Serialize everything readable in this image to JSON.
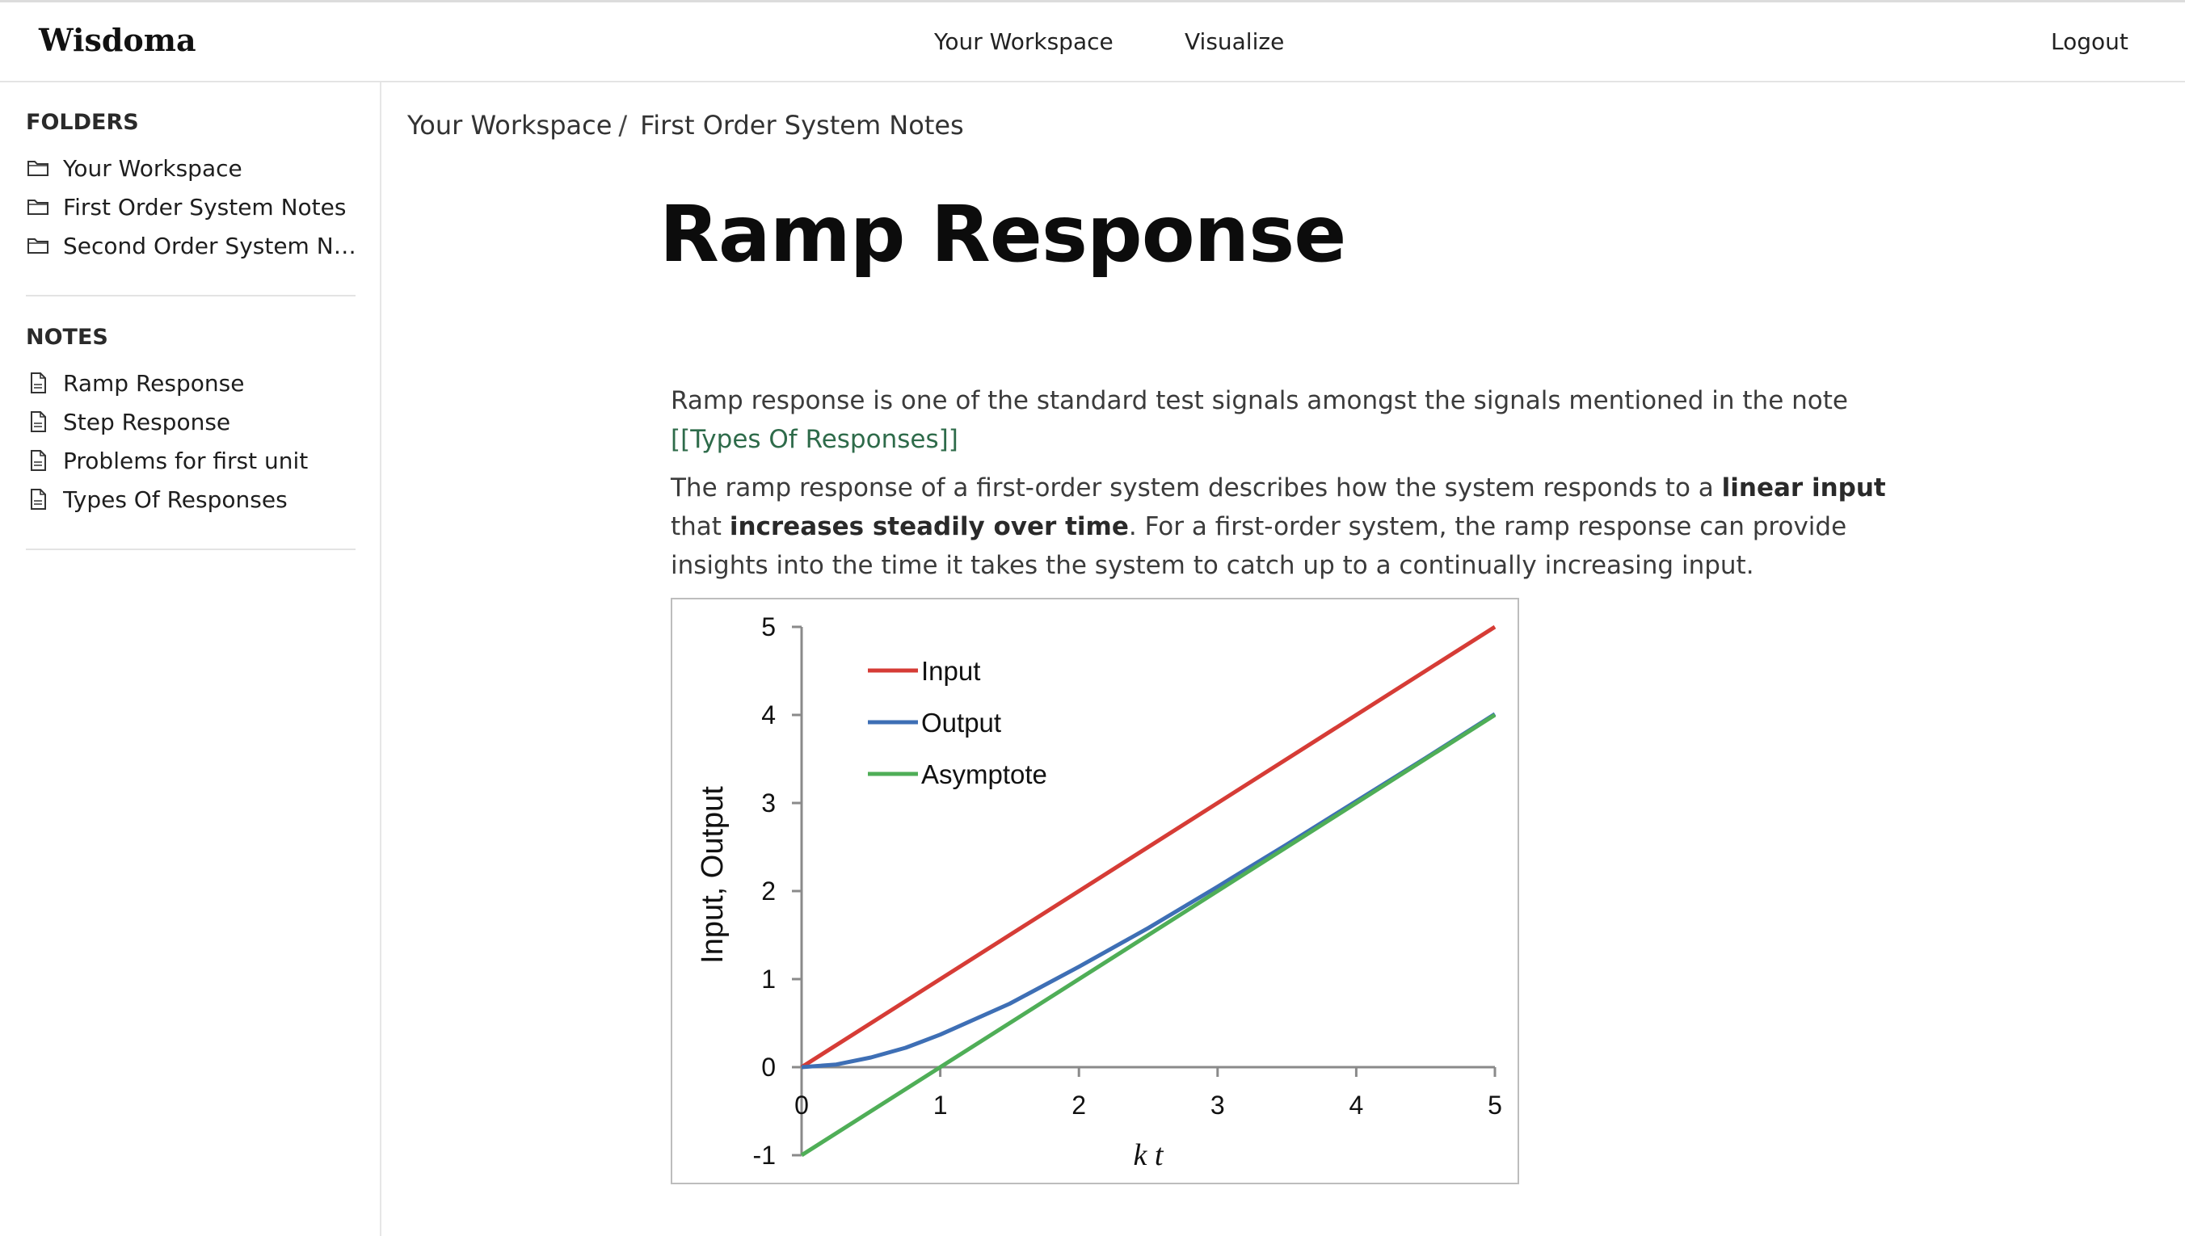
{
  "header": {
    "brand": "Wisdoma",
    "nav": [
      "Your Workspace",
      "Visualize"
    ],
    "logout": "Logout"
  },
  "sidebar": {
    "folders_heading": "FOLDERS",
    "folders": [
      {
        "label": "Your Workspace",
        "icon": "folder-icon"
      },
      {
        "label": "First Order System Notes",
        "icon": "folder-icon"
      },
      {
        "label": "Second Order System No...",
        "icon": "folder-icon"
      }
    ],
    "notes_heading": "NOTES",
    "notes": [
      {
        "label": "Ramp Response",
        "icon": "document-icon"
      },
      {
        "label": "Step Response",
        "icon": "document-icon"
      },
      {
        "label": "Problems for first unit",
        "icon": "document-icon"
      },
      {
        "label": "Types Of Responses",
        "icon": "document-icon"
      }
    ]
  },
  "breadcrumb": {
    "items": [
      "Your Workspace",
      "First Order System Notes"
    ],
    "separator": "/"
  },
  "page": {
    "title": "Ramp Response",
    "para1_text": "Ramp response is one of the standard test signals amongst the signals mentioned in the note",
    "para1_link": "[[Types Of Responses]]",
    "para2_a": "The ramp response of a first-order system describes how the system responds to a ",
    "para2_b": "linear input",
    "para2_c": " that ",
    "para2_d": "increases steadily over time",
    "para2_e": ". For a first-order system, the ramp response can provide insights into the time it takes the system to catch up to a continually increasing input."
  },
  "colors": {
    "input": "#d63c36",
    "output": "#3e6fb5",
    "asymptote": "#4fae57",
    "link": "#2e6b4a"
  },
  "chart_data": {
    "type": "line",
    "xlabel": "k t",
    "ylabel": "Input, Output",
    "xlim": [
      0,
      5
    ],
    "ylim": [
      -1,
      5
    ],
    "xticks": [
      0,
      1,
      2,
      3,
      4,
      5
    ],
    "yticks": [
      -1,
      0,
      1,
      2,
      3,
      4,
      5
    ],
    "legend_position": "top-left",
    "grid": false,
    "series": [
      {
        "name": "Input",
        "color": "#d63c36",
        "x": [
          0,
          5
        ],
        "y": [
          0,
          5
        ]
      },
      {
        "name": "Output",
        "color": "#3e6fb5",
        "x": [
          0,
          0.25,
          0.5,
          0.75,
          1,
          1.5,
          2,
          2.5,
          3,
          3.5,
          4,
          4.5,
          5
        ],
        "y": [
          0,
          0.03,
          0.11,
          0.22,
          0.37,
          0.72,
          1.14,
          1.58,
          2.05,
          2.53,
          3.02,
          3.51,
          4.01
        ]
      },
      {
        "name": "Asymptote",
        "color": "#4fae57",
        "x": [
          0,
          5
        ],
        "y": [
          -1,
          4
        ]
      }
    ]
  }
}
